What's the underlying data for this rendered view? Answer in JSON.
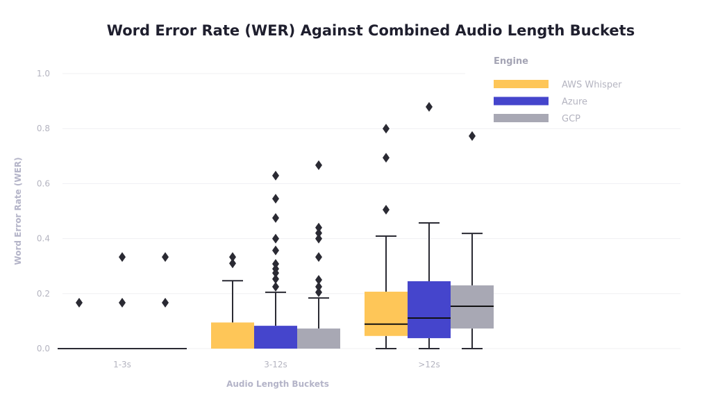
{
  "chart_data": {
    "type": "box",
    "title": "Word Error Rate (WER) Against Combined Audio Length Buckets",
    "xlabel": "Audio Length Buckets",
    "ylabel": "Word Error Rate (WER)",
    "ylim": [
      0,
      1.0
    ],
    "yticks": [
      "0.0",
      "0.2",
      "0.4",
      "0.6",
      "0.8",
      "1.0"
    ],
    "categories": [
      "1-3s",
      "3-12s",
      ">12s"
    ],
    "grid": true,
    "legend": {
      "title": "Engine",
      "placement": "top-right"
    },
    "series": [
      {
        "name": "AWS Whisper",
        "color": "#fec658",
        "boxes": [
          {
            "min": 0,
            "q1": 0,
            "median": 0,
            "q3": 0,
            "max": 0,
            "outliers": [
              0.167
            ]
          },
          {
            "min": 0,
            "q1": 0,
            "median": 0,
            "q3": 0.095,
            "max": 0.247,
            "outliers": [
              0.31,
              0.333
            ]
          },
          {
            "min": 0,
            "q1": 0.046,
            "median": 0.089,
            "q3": 0.207,
            "max": 0.409,
            "outliers": [
              0.505,
              0.694,
              0.8
            ]
          }
        ]
      },
      {
        "name": "Azure",
        "color": "#4545cc",
        "boxes": [
          {
            "min": 0,
            "q1": 0,
            "median": 0,
            "q3": 0,
            "max": 0,
            "outliers": [
              0.167,
              0.333
            ]
          },
          {
            "min": 0,
            "q1": 0,
            "median": 0,
            "q3": 0.083,
            "max": 0.205,
            "outliers": [
              0.225,
              0.253,
              0.275,
              0.29,
              0.308,
              0.357,
              0.4,
              0.475,
              0.545,
              0.629
            ]
          },
          {
            "min": 0,
            "q1": 0.038,
            "median": 0.111,
            "q3": 0.245,
            "max": 0.457,
            "outliers": [
              0.879
            ]
          }
        ]
      },
      {
        "name": "GCP",
        "color": "#a8a8b4",
        "boxes": [
          {
            "min": 0,
            "q1": 0,
            "median": 0,
            "q3": 0,
            "max": 0,
            "outliers": [
              0.167,
              0.333
            ]
          },
          {
            "min": 0,
            "q1": 0,
            "median": 0,
            "q3": 0.073,
            "max": 0.184,
            "outliers": [
              0.205,
              0.225,
              0.25,
              0.333,
              0.4,
              0.42,
              0.44,
              0.667
            ]
          },
          {
            "min": 0,
            "q1": 0.073,
            "median": 0.154,
            "q3": 0.23,
            "max": 0.419,
            "outliers": [
              0.773
            ]
          }
        ]
      }
    ]
  }
}
